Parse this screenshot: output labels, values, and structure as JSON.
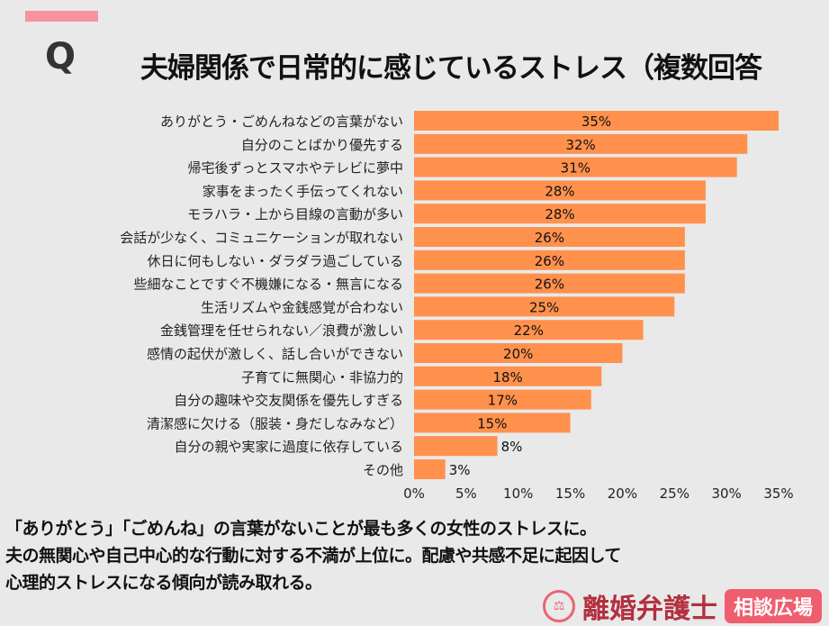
{
  "header": {
    "q_mark": "Q"
  },
  "chart_data": {
    "type": "bar",
    "orientation": "horizontal",
    "title": "夫婦関係で日常的に感じているストレス（複数回答",
    "categories": [
      "ありがとう・ごめんねなどの言葉がない",
      "自分のことばかり優先する",
      "帰宅後ずっとスマホやテレビに夢中",
      "家事をまったく手伝ってくれない",
      "モラハラ・上から目線の言動が多い",
      "会話が少なく、コミュニケーションが取れない",
      "休日に何もしない・ダラダラ過ごしている",
      "些細なことですぐ不機嫌になる・無言になる",
      "生活リズムや金銭感覚が合わない",
      "金銭管理を任せられない／浪費が激しい",
      "感情の起伏が激しく、話し合いができない",
      "子育てに無関心・非協力的",
      "自分の趣味や交友関係を優先しすぎる",
      "清潔感に欠ける（服装・身だしなみなど）",
      "自分の親や実家に過度に依存している",
      "その他"
    ],
    "values": [
      35,
      32,
      31,
      28,
      28,
      26,
      26,
      26,
      25,
      22,
      20,
      18,
      17,
      15,
      8,
      3
    ],
    "value_labels": [
      "35%",
      "32%",
      "31%",
      "28%",
      "28%",
      "26%",
      "26%",
      "26%",
      "25%",
      "22%",
      "20%",
      "18%",
      "17%",
      "15%",
      "8%",
      "3%"
    ],
    "xticks": [
      "0%",
      "5%",
      "10%",
      "15%",
      "20%",
      "25%",
      "30%",
      "35%"
    ],
    "xlim": [
      0,
      35
    ],
    "grid": false,
    "bar_color": "#ff914d"
  },
  "summary": [
    "「ありがとう」「ごめんね」の言葉がないことが最も多くの女性のストレスに。",
    "夫の無関心や自己中心的な行動に対する不満が上位に。配慮や共感不足に起因して",
    "心理的ストレスになる傾向が読み取れる。"
  ],
  "logo": {
    "brand": "離婚弁護士",
    "badge": "相談広場",
    "seal_text": "弁"
  }
}
